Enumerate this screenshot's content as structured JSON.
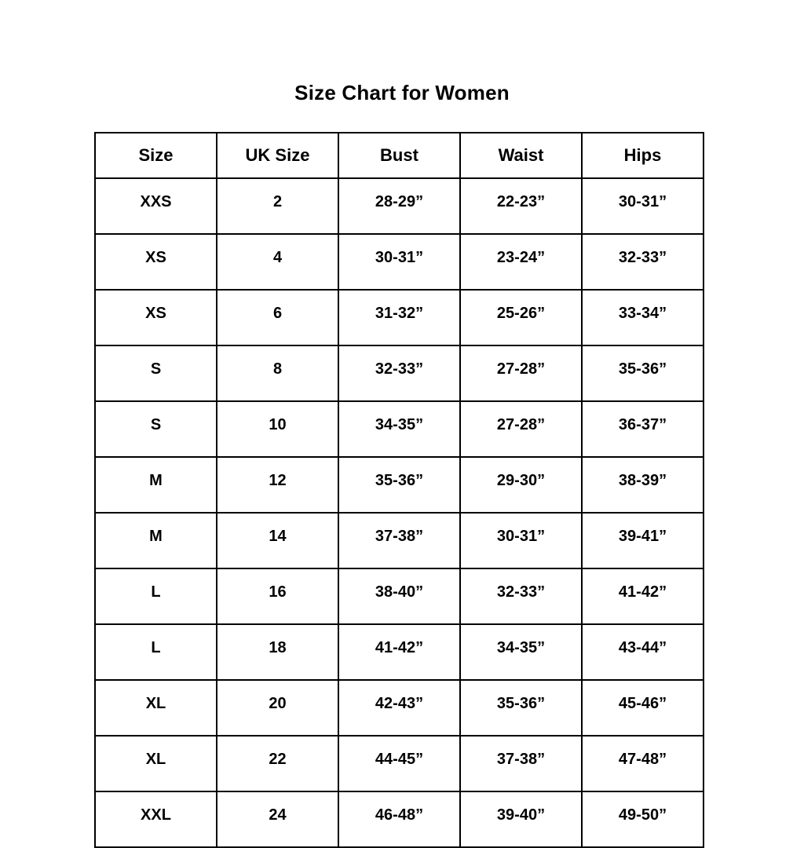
{
  "title": "Size Chart for Women",
  "chart_data": {
    "type": "table",
    "title": "Size Chart for Women",
    "headers": [
      "Size",
      "UK Size",
      "Bust",
      "Waist",
      "Hips"
    ],
    "rows": [
      [
        "XXS",
        "2",
        "28-29”",
        "22-23”",
        "30-31”"
      ],
      [
        "XS",
        "4",
        "30-31”",
        "23-24”",
        "32-33”"
      ],
      [
        "XS",
        "6",
        "31-32”",
        "25-26”",
        "33-34”"
      ],
      [
        "S",
        "8",
        "32-33”",
        "27-28”",
        "35-36”"
      ],
      [
        "S",
        "10",
        "34-35”",
        "27-28”",
        "36-37”"
      ],
      [
        "M",
        "12",
        "35-36”",
        "29-30”",
        "38-39”"
      ],
      [
        "M",
        "14",
        "37-38”",
        "30-31”",
        "39-41”"
      ],
      [
        "L",
        "16",
        "38-40”",
        "32-33”",
        "41-42”"
      ],
      [
        "L",
        "18",
        "41-42”",
        "34-35”",
        "43-44”"
      ],
      [
        "XL",
        "20",
        "42-43”",
        "35-36”",
        "45-46”"
      ],
      [
        "XL",
        "22",
        "44-45”",
        "37-38”",
        "47-48”"
      ],
      [
        "XXL",
        "24",
        "46-48”",
        "39-40”",
        "49-50”"
      ]
    ]
  }
}
